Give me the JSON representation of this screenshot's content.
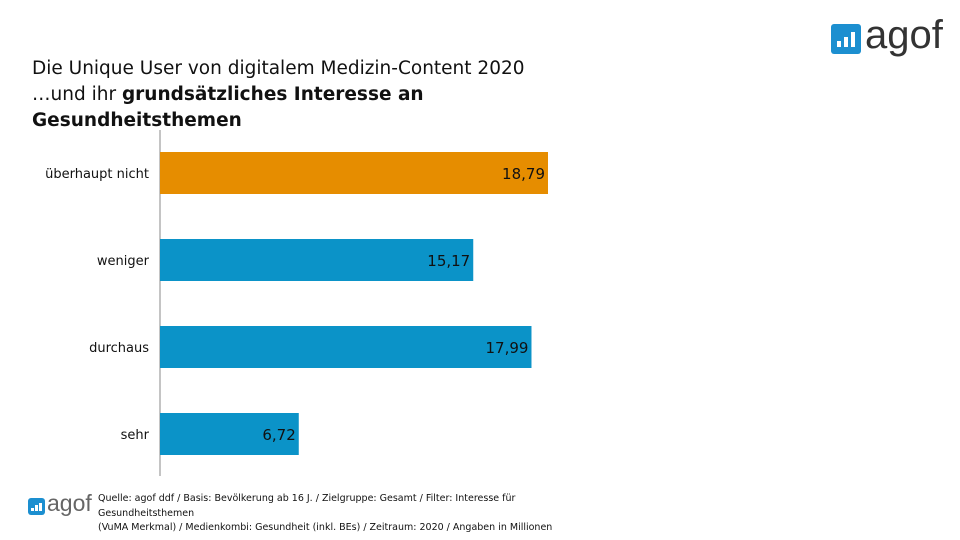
{
  "title": {
    "line1": "Die Unique User von digitalem Medizin-Content 2020",
    "line2_prefix": "…und ihr ",
    "line2_bold": "grundsätzliches Interesse an",
    "line3_bold": "Gesundheitsthemen"
  },
  "logo": {
    "text": "agof",
    "color": "#1c8fd0"
  },
  "source": {
    "line1": "Quelle: agof ddf / Basis: Bevölkerung ab 16 J. / Zielgruppe: Gesamt / Filter: Interesse für",
    "line2": "Gesundheitsthemen",
    "line3": "(VuMA Merkmal) / Medienkombi: Gesundheit (inkl. BEs) / Zeitraum: 2020 / Angaben in Millionen"
  },
  "chart_data": {
    "type": "bar",
    "orientation": "horizontal",
    "categories": [
      "überhaupt nicht",
      "weniger",
      "durchaus",
      "sehr"
    ],
    "values": [
      18.79,
      15.17,
      17.99,
      6.72
    ],
    "data_labels": [
      "18,79",
      "15,17",
      "17,99",
      "6,72"
    ],
    "colors": [
      "#e68d00",
      "#0b93c8",
      "#0b93c8",
      "#0b93c8"
    ],
    "xlim": [
      0,
      18.79
    ],
    "grid": false,
    "legend": "none"
  }
}
